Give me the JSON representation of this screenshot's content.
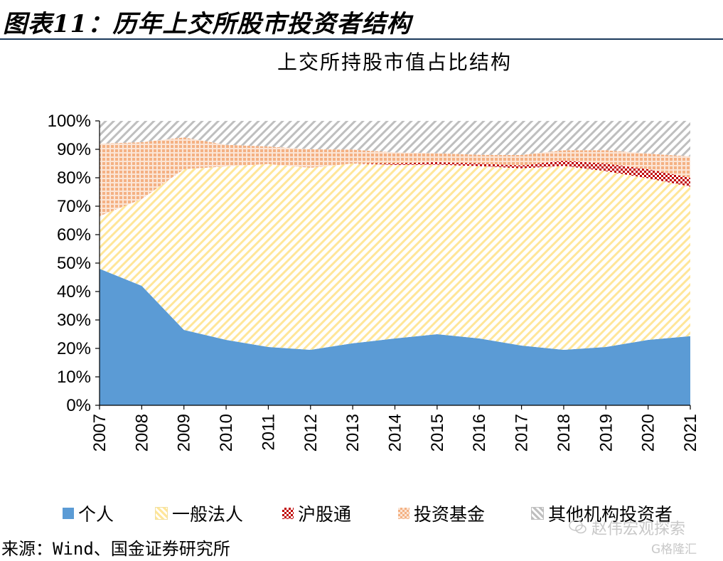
{
  "header": {
    "figure_title": "图表11：历年上交所股市投资者结构"
  },
  "source_note": "来源：Wind、国金证券研究所",
  "watermark": {
    "text": "赵伟宏观探索",
    "logo": "G格隆汇"
  },
  "colors": {
    "individual": "#5b9bd5",
    "corporate": "#ffe699",
    "hk_connect": "#c00000",
    "funds": "#f4b183",
    "other": "#a6a6a6",
    "header_rule": "#1b3a5c"
  },
  "chart_data": {
    "type": "area",
    "stacked": true,
    "title": "上交所持股市值占比结构",
    "x": [
      "2007",
      "2008",
      "2009",
      "2010",
      "2011",
      "2012",
      "2013",
      "2014",
      "2015",
      "2016",
      "2017",
      "2018",
      "2019",
      "2020",
      "2021"
    ],
    "ylim": [
      0,
      100
    ],
    "yticks": [
      "0%",
      "10%",
      "20%",
      "30%",
      "40%",
      "50%",
      "60%",
      "70%",
      "80%",
      "90%",
      "100%"
    ],
    "legend_position": "bottom",
    "grid": false,
    "series": [
      {
        "name": "个人",
        "pattern": "solid",
        "color_key": "individual",
        "values": [
          48,
          42,
          26.5,
          23,
          20.5,
          19.5,
          21.8,
          23.5,
          25,
          23.5,
          21,
          19.5,
          20.5,
          23,
          24.3
        ]
      },
      {
        "name": "一般法人",
        "pattern": "hatch",
        "color_key": "corporate",
        "values": [
          18.5,
          30.5,
          56.5,
          61,
          64.3,
          64,
          63.2,
          61,
          59.6,
          60.6,
          62.3,
          64.7,
          61.8,
          56.8,
          52.6
        ]
      },
      {
        "name": "沪股通",
        "pattern": "check",
        "color_key": "hk_connect",
        "values": [
          0,
          0,
          0,
          0,
          0,
          0,
          0,
          0.5,
          0.9,
          0.9,
          1,
          1.8,
          2.7,
          3.2,
          3.1
        ]
      },
      {
        "name": "投资基金",
        "pattern": "dots",
        "color_key": "funds",
        "values": [
          25.5,
          20,
          11.2,
          7.6,
          6.2,
          6.5,
          4.9,
          3.9,
          3.1,
          3.1,
          3.7,
          3.7,
          4.7,
          5.5,
          7.5
        ]
      },
      {
        "name": "其他机构投资者",
        "pattern": "dash",
        "color_key": "other",
        "values": [
          8,
          7.5,
          5.8,
          8.4,
          9,
          10,
          10.1,
          11.1,
          11.4,
          11.9,
          12,
          10.3,
          10.3,
          11.5,
          12.5
        ]
      }
    ]
  }
}
